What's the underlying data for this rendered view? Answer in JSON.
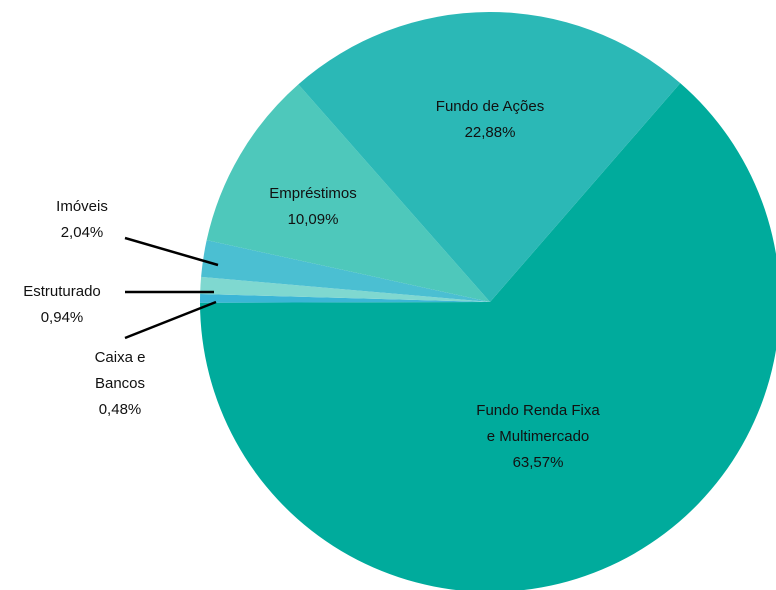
{
  "chart_data": {
    "type": "pie",
    "categories": [
      "Fundo Renda Fixa e Multimercado",
      "Caixa e Bancos",
      "Estruturado",
      "Imóveis",
      "Empréstimos",
      "Fundo de Ações"
    ],
    "values": [
      63.57,
      0.48,
      0.94,
      2.04,
      10.09,
      22.88
    ],
    "value_labels": [
      "63,57%",
      "0,48%",
      "0,94%",
      "2,04%",
      "10,09%",
      "22,88%"
    ],
    "colors": [
      "#00ab9c",
      "#3bb6d6",
      "#7fd8d0",
      "#4bbfd2",
      "#4ec8bb",
      "#2bb8b6"
    ]
  }
}
